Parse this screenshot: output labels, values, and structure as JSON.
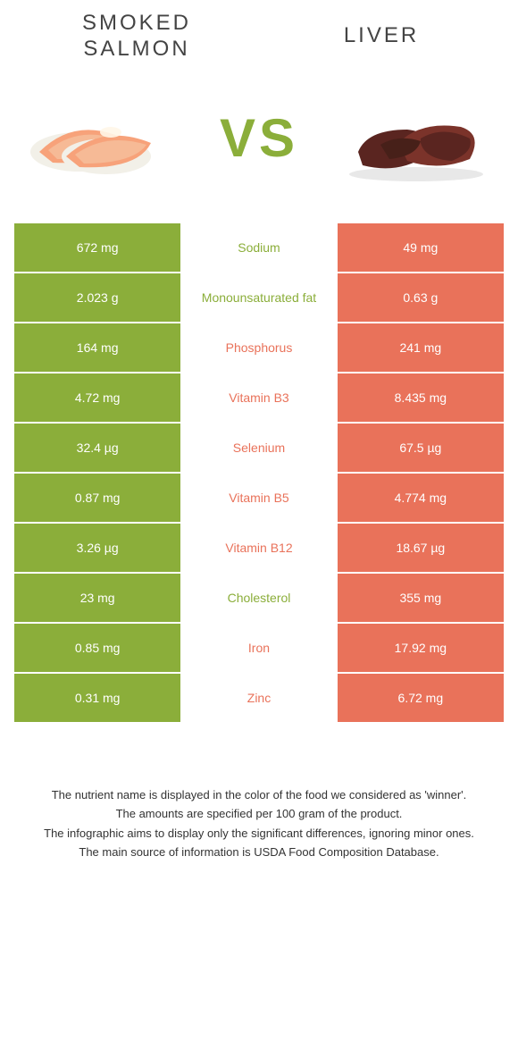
{
  "header": {
    "left_title": "SMOKED\nSALMON",
    "right_title": "LIVER"
  },
  "vs_label": "VS",
  "colors": {
    "green": "#8bae3a",
    "orange": "#e9725a",
    "background": "#ffffff",
    "text": "#333333"
  },
  "left_image": {
    "alt": "smoked-salmon-image",
    "main_color": "#f7a27a",
    "accent_color": "#f5c9a8",
    "rice_color": "#f2f0e8"
  },
  "right_image": {
    "alt": "liver-image",
    "main_color": "#5a2520",
    "accent_color": "#7b332a"
  },
  "nutrients": [
    {
      "label": "Sodium",
      "left": "672 mg",
      "right": "49 mg",
      "winner": "green"
    },
    {
      "label": "Monounsaturated fat",
      "left": "2.023 g",
      "right": "0.63 g",
      "winner": "green"
    },
    {
      "label": "Phosphorus",
      "left": "164 mg",
      "right": "241 mg",
      "winner": "orange"
    },
    {
      "label": "Vitamin B3",
      "left": "4.72 mg",
      "right": "8.435 mg",
      "winner": "orange"
    },
    {
      "label": "Selenium",
      "left": "32.4 µg",
      "right": "67.5 µg",
      "winner": "orange"
    },
    {
      "label": "Vitamin B5",
      "left": "0.87 mg",
      "right": "4.774 mg",
      "winner": "orange"
    },
    {
      "label": "Vitamin B12",
      "left": "3.26 µg",
      "right": "18.67 µg",
      "winner": "orange"
    },
    {
      "label": "Cholesterol",
      "left": "23 mg",
      "right": "355 mg",
      "winner": "green"
    },
    {
      "label": "Iron",
      "left": "0.85 mg",
      "right": "17.92 mg",
      "winner": "orange"
    },
    {
      "label": "Zinc",
      "left": "0.31 mg",
      "right": "6.72 mg",
      "winner": "orange"
    }
  ],
  "footer": {
    "line1": "The nutrient name is displayed in the color of the food we considered as 'winner'.",
    "line2": "The amounts are specified per 100 gram of the product.",
    "line3": "The infographic aims to display only the significant differences, ignoring minor ones.",
    "line4": "The main source of information is USDA Food Composition Database."
  }
}
